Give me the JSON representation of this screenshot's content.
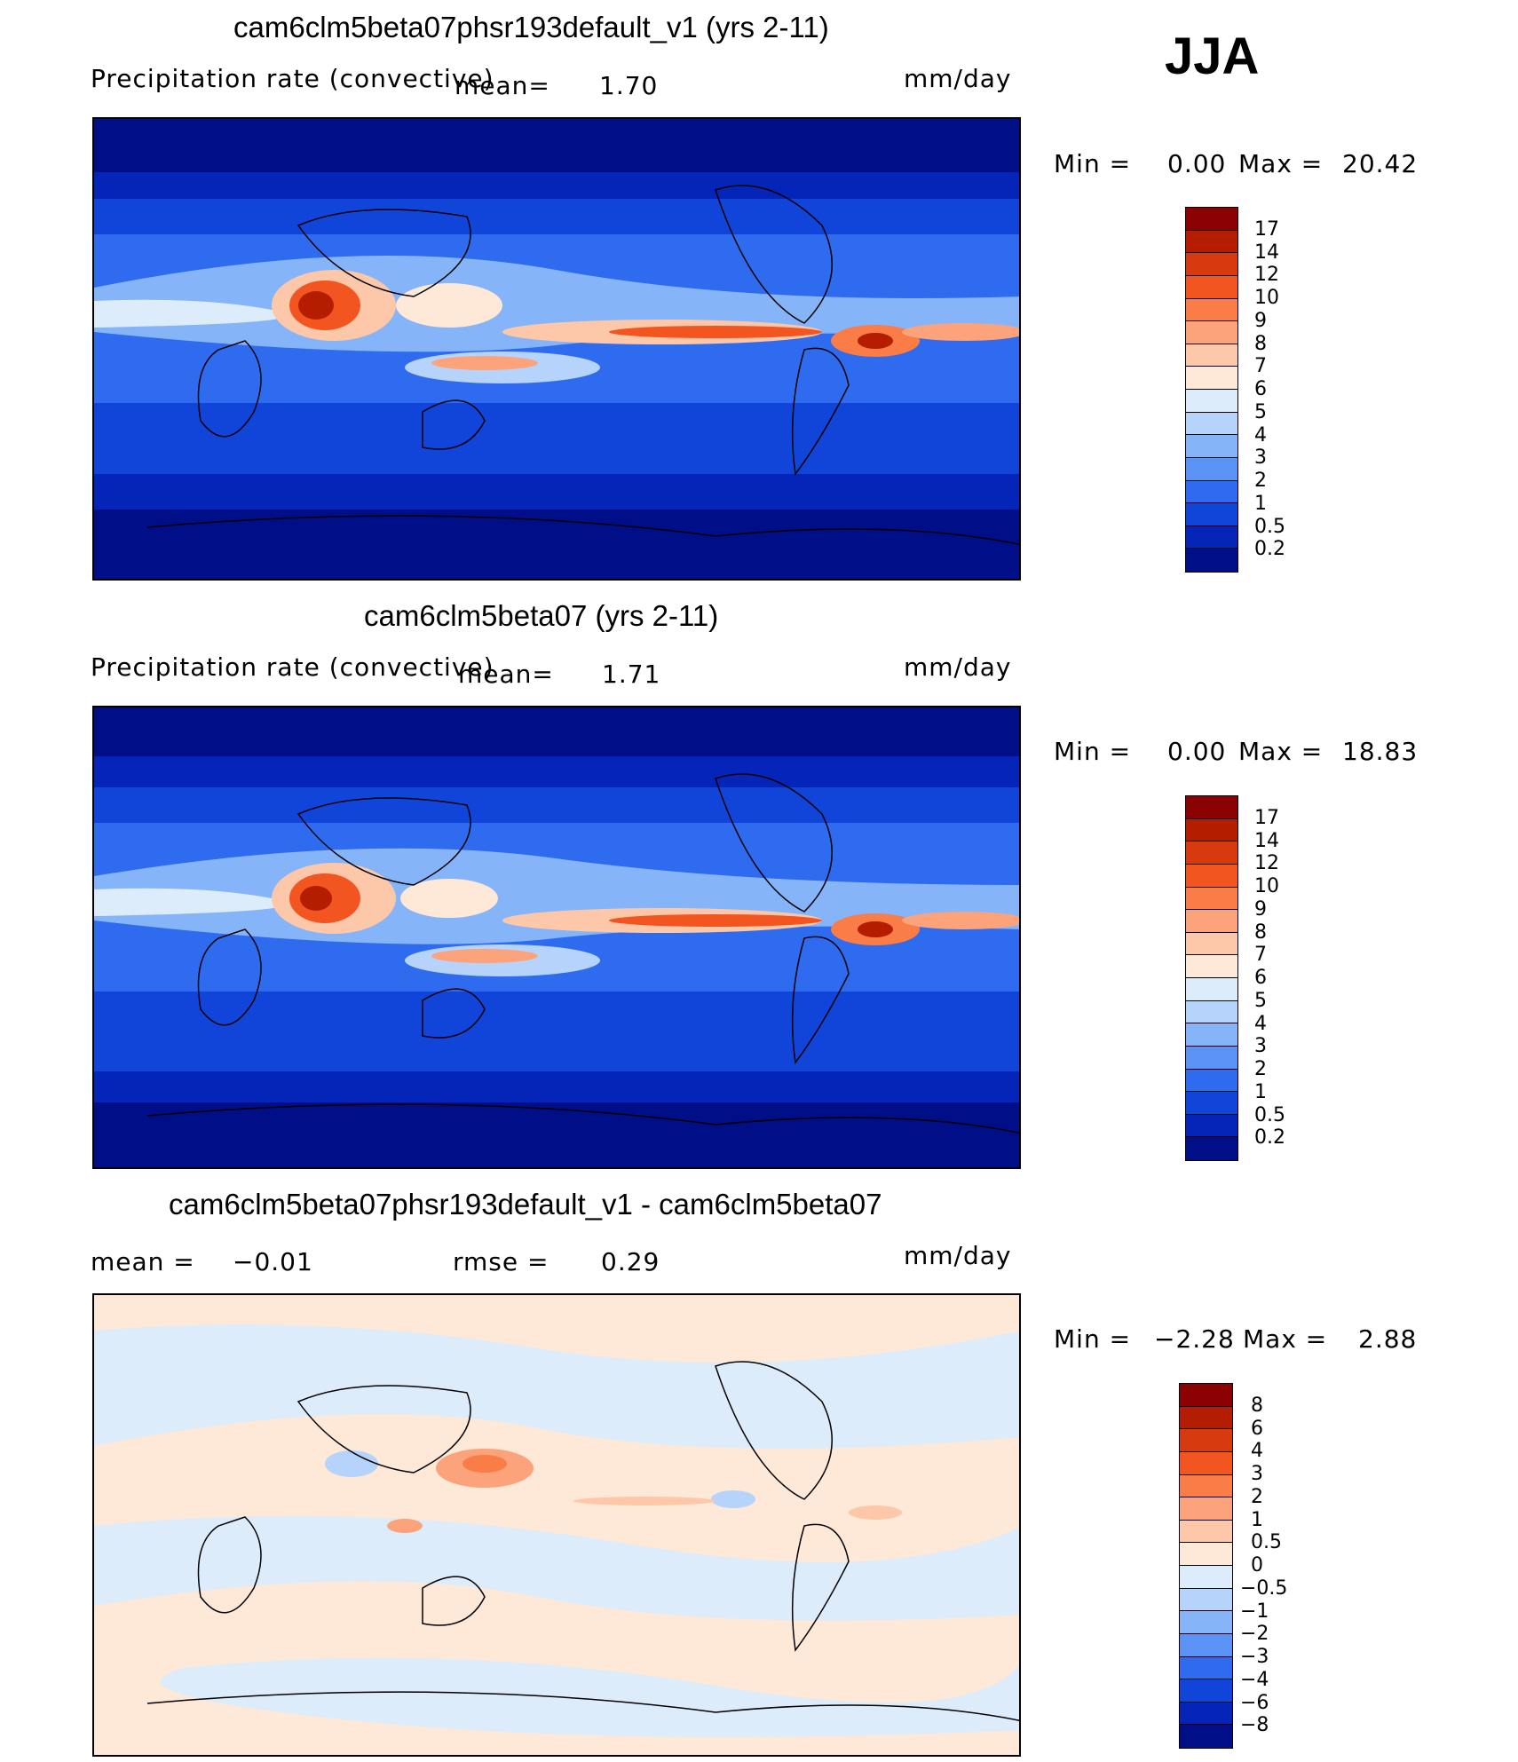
{
  "season": "JJA",
  "panels": [
    {
      "title": "cam6clm5beta07phsr193default_v1 (yrs 2-11)",
      "variable": "Precipitation rate (convective)",
      "mean_label": "mean=",
      "mean_value": "1.70",
      "units": "mm/day",
      "min_label": "Min  =",
      "min_value": "0.00",
      "max_label": "Max  =",
      "max_value": "20.42"
    },
    {
      "title": "cam6clm5beta07 (yrs 2-11)",
      "variable": "Precipitation rate (convective)",
      "mean_label": "mean=",
      "mean_value": "1.71",
      "units": "mm/day",
      "min_label": "Min  =",
      "min_value": "0.00",
      "max_label": "Max  =",
      "max_value": "18.83"
    },
    {
      "title": "cam6clm5beta07phsr193default_v1 - cam6clm5beta07",
      "mean_label": "mean  =",
      "mean_value": "−0.01",
      "rmse_label": "rmse  =",
      "rmse_value": "0.29",
      "units": "mm/day",
      "min_label": "Min  =",
      "min_value": "−2.28",
      "max_label": "Max  =",
      "max_value": "2.88"
    }
  ],
  "colorbars": {
    "precip": {
      "levels": [
        "17",
        "14",
        "12",
        "10",
        "9",
        "8",
        "7",
        "6",
        "5",
        "4",
        "3",
        "2",
        "1",
        "0.5",
        "0.2"
      ],
      "colors": [
        "#8b0000",
        "#b51d00",
        "#d83a10",
        "#f25520",
        "#fa7c47",
        "#fca37b",
        "#fdc8aa",
        "#fee8d8",
        "#dcecfb",
        "#b5d3fb",
        "#86b4f9",
        "#5a92f5",
        "#2e6bef",
        "#1144d8",
        "#0524b8",
        "#000e88"
      ]
    },
    "diff": {
      "levels": [
        "8",
        "6",
        "4",
        "3",
        "2",
        "1",
        "0.5",
        "0",
        "−0.5",
        "−1",
        "−2",
        "−3",
        "−4",
        "−6",
        "−8"
      ],
      "colors": [
        "#8b0000",
        "#b51d00",
        "#d83a10",
        "#f25520",
        "#fa7c47",
        "#fca37b",
        "#fdc8aa",
        "#fee8d8",
        "#dcecfb",
        "#b5d3fb",
        "#86b4f9",
        "#5a92f5",
        "#2e6bef",
        "#1144d8",
        "#0524b8",
        "#000e88"
      ]
    }
  }
}
